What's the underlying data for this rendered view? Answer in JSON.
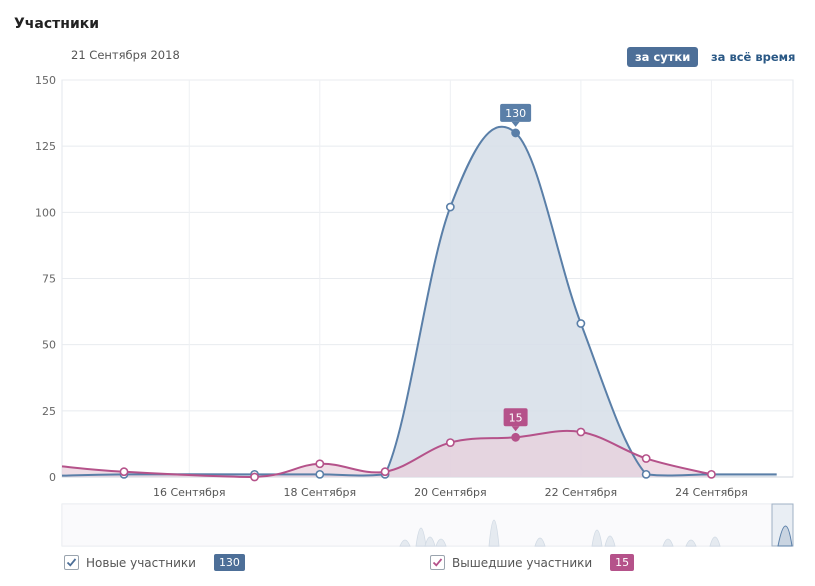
{
  "header": {
    "title": "Участники",
    "date": "21 Сентября 2018",
    "period_day": "за сутки",
    "period_all": "за всё время"
  },
  "legend": {
    "new_label": "Новые участники",
    "new_value": "130",
    "left_label": "Вышедшие участники",
    "left_value": "15"
  },
  "colors": {
    "new": "#5a7fa8",
    "new_fill": "#d6dee8",
    "left": "#b5528a",
    "left_fill": "#e8cfdc",
    "accent": "#4d6f98"
  },
  "chart_data": {
    "type": "area",
    "title": "Участники",
    "x": [
      15.05,
      16,
      17,
      18,
      18.5,
      19,
      20,
      21,
      22,
      23,
      23.75,
      24,
      25
    ],
    "x_tick_labels": [
      {
        "x": 16,
        "label": "16 Сентября"
      },
      {
        "x": 18,
        "label": "18 Сентября"
      },
      {
        "x": 20,
        "label": "20 Сентября"
      },
      {
        "x": 22,
        "label": "22 Сентября"
      },
      {
        "x": 24,
        "label": "24 Сентября"
      }
    ],
    "yticks": [
      0,
      25,
      50,
      75,
      100,
      125,
      150
    ],
    "ylim": [
      0,
      150
    ],
    "xlim": [
      14.05,
      25.25
    ],
    "series": [
      {
        "name": "Новые участники",
        "x": [
          14.05,
          15,
          17,
          18,
          19,
          20,
          21,
          22,
          23,
          24,
          25
        ],
        "values": [
          0.5,
          1,
          1,
          1,
          1,
          102,
          130,
          58,
          1,
          1,
          1
        ],
        "markers": [
          15,
          17,
          18,
          19,
          20,
          21,
          22,
          23
        ],
        "highlight": {
          "x": 21,
          "value": 130
        }
      },
      {
        "name": "Вышедшие участники",
        "x": [
          14.05,
          15,
          17,
          18,
          19,
          20,
          21,
          22,
          23,
          24
        ],
        "values": [
          4,
          2,
          0,
          5,
          2,
          13,
          15,
          17,
          7,
          1
        ],
        "markers": [
          15,
          17,
          18,
          19,
          20,
          21,
          22,
          23,
          24
        ],
        "highlight": {
          "x": 21,
          "value": 15
        }
      }
    ]
  }
}
